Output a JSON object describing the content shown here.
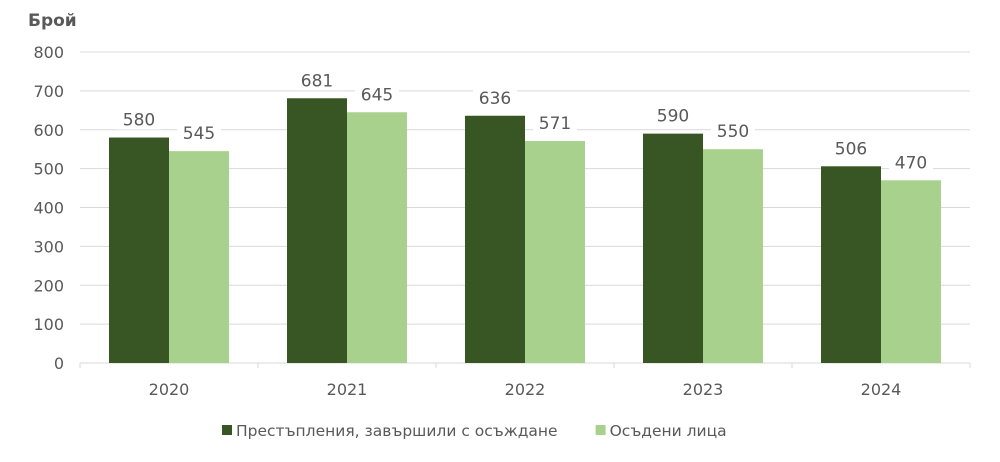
{
  "chart_data": {
    "type": "bar",
    "ylabel": "Брой",
    "categories": [
      "2020",
      "2021",
      "2022",
      "2023",
      "2024"
    ],
    "ylim": [
      0,
      800
    ],
    "yticks": [
      0,
      100,
      200,
      300,
      400,
      500,
      600,
      700,
      800
    ],
    "grid": true,
    "legend_position": "bottom",
    "series": [
      {
        "name": "Престъпления, завършили с осъждане",
        "color": "#375623",
        "values": [
          580,
          681,
          636,
          590,
          506
        ]
      },
      {
        "name": "Осъдени лица",
        "color": "#A9D18E",
        "values": [
          545,
          645,
          571,
          550,
          470
        ]
      }
    ]
  }
}
